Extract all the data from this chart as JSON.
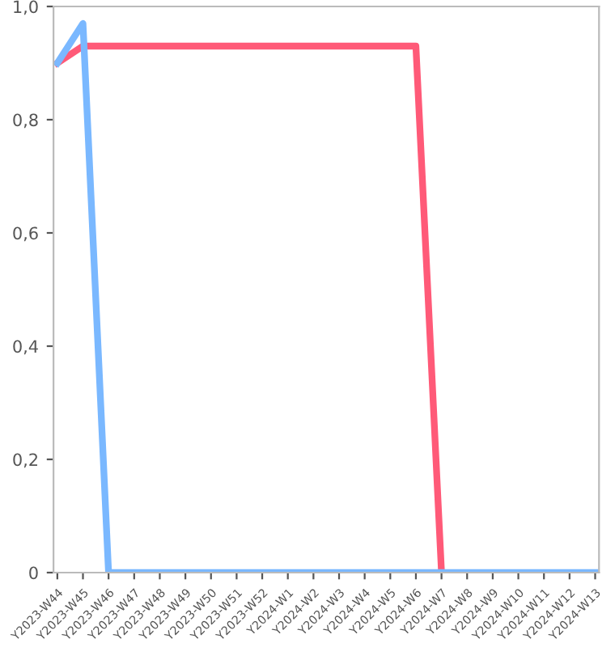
{
  "chart_data": {
    "type": "line",
    "categories": [
      "Y2023-W44",
      "Y2023-W45",
      "Y2023-W46",
      "Y2023-W47",
      "Y2023-W48",
      "Y2023-W49",
      "Y2023-W50",
      "Y2023-W51",
      "Y2023-W52",
      "Y2024-W1",
      "Y2024-W2",
      "Y2024-W3",
      "Y2024-W4",
      "Y2024-W5",
      "Y2024-W6",
      "Y2024-W7",
      "Y2024-W8",
      "Y2024-W9",
      "Y2024-W10",
      "Y2024-W11",
      "Y2024-W12",
      "Y2024-W13"
    ],
    "series": [
      {
        "color": "#ff5a78",
        "values": [
          0.9,
          0.93,
          0.93,
          0.93,
          0.93,
          0.93,
          0.93,
          0.93,
          0.93,
          0.93,
          0.93,
          0.93,
          0.93,
          0.93,
          0.93,
          0,
          null,
          null,
          null,
          null,
          null,
          null
        ]
      },
      {
        "color": "#7ab8ff",
        "values": [
          0.9,
          0.97,
          0,
          0,
          0,
          0,
          0,
          0,
          0,
          0,
          0,
          0,
          0,
          0,
          0,
          0,
          0,
          0,
          0,
          0,
          0,
          0
        ]
      }
    ],
    "ylim": [
      0,
      1.0
    ],
    "yticks": [
      {
        "value": 0,
        "label": "0"
      },
      {
        "value": 0.2,
        "label": "0,2"
      },
      {
        "value": 0.4,
        "label": "0,4"
      },
      {
        "value": 0.6,
        "label": "0,6"
      },
      {
        "value": 0.8,
        "label": "0,8"
      },
      {
        "value": 1.0,
        "label": "1,0"
      }
    ],
    "grid": false,
    "legend": false,
    "marker": "none",
    "line_style": "solid"
  }
}
